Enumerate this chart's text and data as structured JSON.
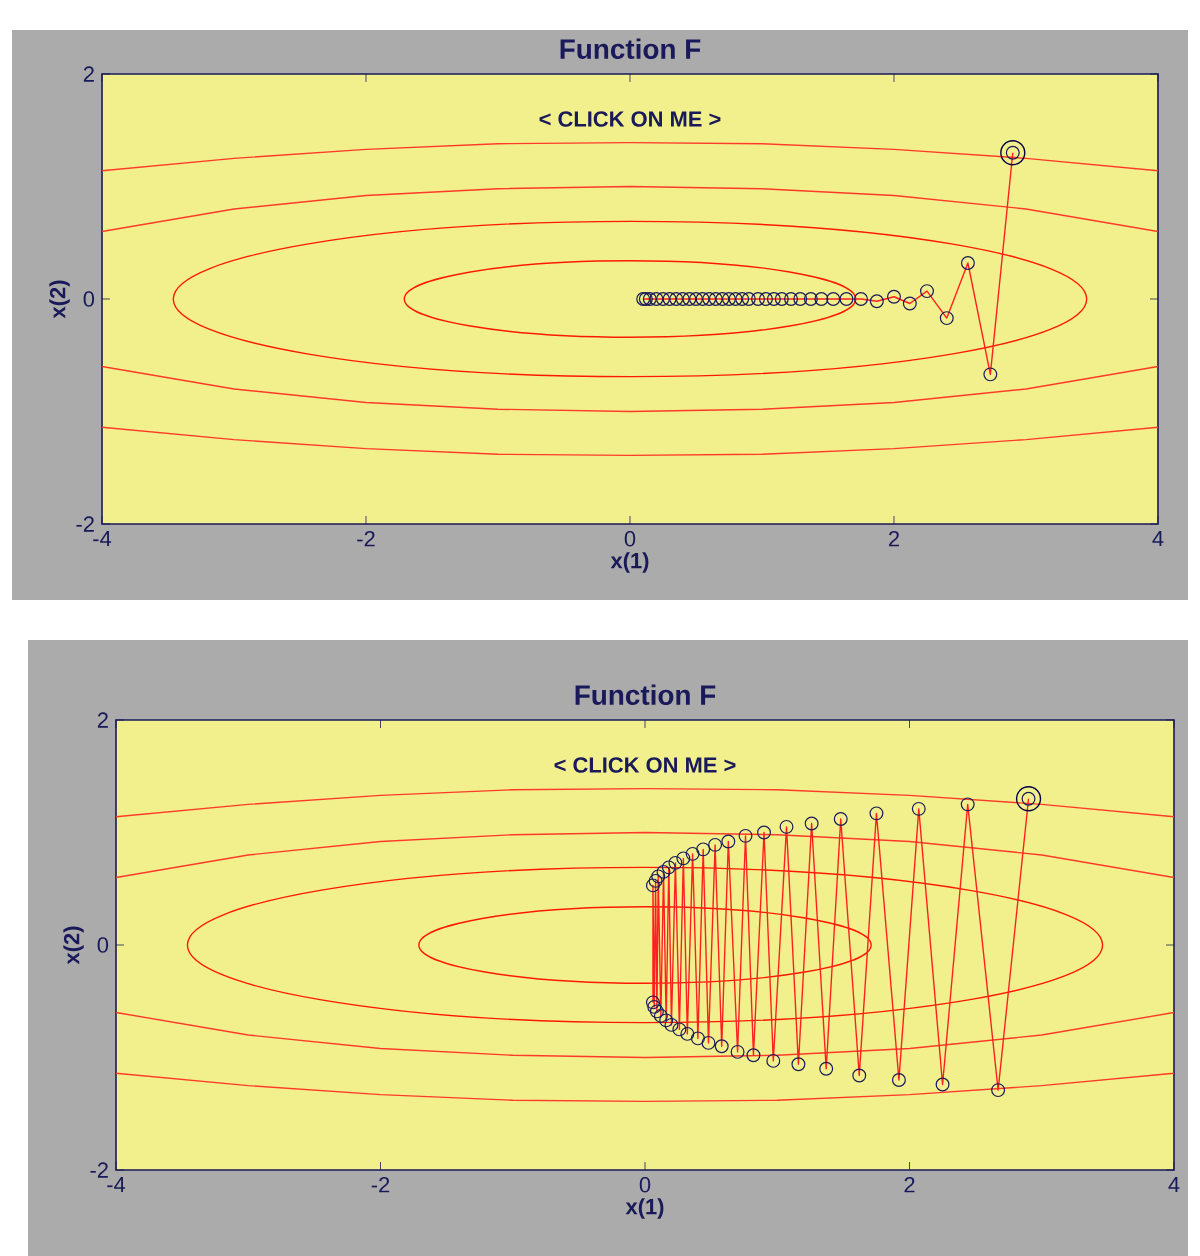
{
  "chart_data": [
    {
      "type": "line",
      "title": "Function F",
      "xlabel": "x(1)",
      "ylabel": "x(2)",
      "annotations": [
        "< CLICK ON ME >"
      ],
      "xlim": [
        -4,
        4
      ],
      "ylim": [
        -2,
        2
      ],
      "xticks": [
        -4,
        -2,
        0,
        2,
        4
      ],
      "yticks": [
        -2,
        0,
        2
      ],
      "series": [
        {
          "marker": "none",
          "color": "#ff3a2a",
          "x": [
            -4,
            -3,
            -2,
            -1,
            0,
            1,
            2,
            3,
            4
          ],
          "values": [
            0.6,
            0.8,
            0.92,
            0.98,
            1.0,
            0.98,
            0.92,
            0.8,
            0.6
          ]
        },
        {
          "marker": "none",
          "color": "#ff3a2a",
          "x": [
            -4,
            -3,
            -2,
            -1,
            0,
            1,
            2,
            3,
            4
          ],
          "values": [
            -0.6,
            -0.8,
            -0.92,
            -0.98,
            -1.0,
            -0.98,
            -0.92,
            -0.8,
            -0.6
          ]
        },
        {
          "marker": "none",
          "color": "#ff3a2a",
          "x": [
            -4,
            -3,
            -2,
            -1,
            0,
            1,
            2,
            3,
            4
          ],
          "values": [
            1.14,
            1.25,
            1.33,
            1.38,
            1.39,
            1.38,
            1.33,
            1.25,
            1.14
          ]
        },
        {
          "marker": "none",
          "color": "#ff3a2a",
          "x": [
            -4,
            -3,
            -2,
            -1,
            0,
            1,
            2,
            3,
            4
          ],
          "values": [
            -1.14,
            -1.25,
            -1.33,
            -1.38,
            -1.39,
            -1.38,
            -1.33,
            -1.25,
            -1.14
          ]
        },
        {
          "marker": "circle",
          "color": "#ff2020",
          "x": [
            2.9,
            2.73,
            2.56,
            2.4,
            2.25,
            2.12,
            2.0,
            1.87,
            1.75,
            1.64,
            1.54,
            1.45,
            1.37,
            1.29,
            1.22,
            1.15,
            1.09,
            1.03,
            0.97,
            0.9,
            0.85,
            0.8,
            0.75,
            0.7,
            0.65,
            0.6,
            0.55,
            0.5,
            0.45,
            0.4,
            0.35,
            0.3,
            0.25,
            0.2,
            0.15,
            0.12,
            0.1
          ],
          "values": [
            1.3,
            -0.67,
            0.32,
            -0.17,
            0.07,
            -0.04,
            0.02,
            -0.02,
            0,
            0,
            0,
            0,
            0,
            0,
            0,
            0,
            0,
            0,
            0,
            0,
            0,
            0,
            0,
            0,
            0,
            0,
            0,
            0,
            0,
            0,
            0,
            0,
            0,
            0,
            0,
            0,
            0
          ]
        },
        {
          "type": "scatter",
          "marker": "circle",
          "color": "#000040",
          "x": [
            2.9
          ],
          "values": [
            1.3
          ]
        }
      ]
    },
    {
      "type": "line",
      "title": "Function F",
      "xlabel": "x(1)",
      "ylabel": "x(2)",
      "annotations": [
        "< CLICK ON ME >"
      ],
      "xlim": [
        -4,
        4
      ],
      "ylim": [
        -2,
        2
      ],
      "xticks": [
        -4,
        -2,
        0,
        2,
        4
      ],
      "yticks": [
        -2,
        0,
        2
      ],
      "series": [
        {
          "marker": "none",
          "color": "#ff3a2a",
          "x": [
            -4,
            -3,
            -2,
            -1,
            0,
            1,
            2,
            3,
            4
          ],
          "values": [
            0.6,
            0.8,
            0.92,
            0.98,
            1.0,
            0.98,
            0.92,
            0.8,
            0.6
          ]
        },
        {
          "marker": "none",
          "color": "#ff3a2a",
          "x": [
            -4,
            -3,
            -2,
            -1,
            0,
            1,
            2,
            3,
            4
          ],
          "values": [
            -0.6,
            -0.8,
            -0.92,
            -0.98,
            -1.0,
            -0.98,
            -0.92,
            -0.8,
            -0.6
          ]
        },
        {
          "marker": "none",
          "color": "#ff3a2a",
          "x": [
            -4,
            -3,
            -2,
            -1,
            0,
            1,
            2,
            3,
            4
          ],
          "values": [
            1.14,
            1.25,
            1.33,
            1.38,
            1.39,
            1.38,
            1.33,
            1.25,
            1.14
          ]
        },
        {
          "marker": "none",
          "color": "#ff3a2a",
          "x": [
            -4,
            -3,
            -2,
            -1,
            0,
            1,
            2,
            3,
            4
          ],
          "values": [
            -1.14,
            -1.25,
            -1.33,
            -1.38,
            -1.39,
            -1.38,
            -1.33,
            -1.25,
            -1.14
          ]
        },
        {
          "marker": "circle",
          "color": "#ff2020",
          "x": [
            2.9,
            2.67,
            2.44,
            2.25,
            2.07,
            1.92,
            1.75,
            1.62,
            1.48,
            1.37,
            1.26,
            1.16,
            1.07,
            0.97,
            0.9,
            0.82,
            0.76,
            0.7,
            0.63,
            0.58,
            0.53,
            0.48,
            0.44,
            0.4,
            0.36,
            0.32,
            0.29,
            0.26,
            0.23,
            0.2,
            0.18,
            0.16,
            0.14,
            0.12,
            0.1,
            0.09,
            0.08,
            0.07,
            0.06,
            0.06
          ],
          "values": [
            1.3,
            -1.29,
            1.25,
            -1.24,
            1.21,
            -1.2,
            1.17,
            -1.16,
            1.12,
            -1.1,
            1.08,
            -1.06,
            1.05,
            -1.03,
            1.0,
            -0.98,
            0.97,
            -0.95,
            0.92,
            -0.9,
            0.89,
            -0.87,
            0.85,
            -0.83,
            0.81,
            -0.79,
            0.77,
            -0.75,
            0.73,
            -0.71,
            0.69,
            -0.67,
            0.65,
            -0.63,
            0.61,
            -0.59,
            0.57,
            -0.55,
            0.53,
            -0.51
          ]
        },
        {
          "type": "scatter",
          "marker": "circle",
          "color": "#000040",
          "x": [
            2.9
          ],
          "values": [
            1.3
          ]
        }
      ]
    }
  ]
}
